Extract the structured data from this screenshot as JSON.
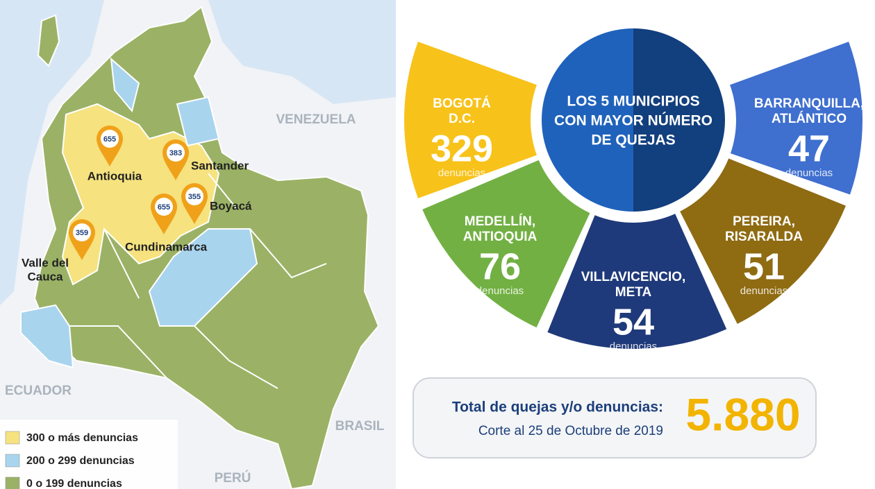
{
  "map": {
    "countries": [
      "VENEZUELA",
      "ECUADOR",
      "BRASIL",
      "PERÚ"
    ],
    "departments": [
      {
        "name": [
          "Antioquia"
        ],
        "count": "655"
      },
      {
        "name": [
          "Santander"
        ],
        "count": "383"
      },
      {
        "name": [
          "Boyacá"
        ],
        "count": "355"
      },
      {
        "name": [
          "Cundinamarca"
        ],
        "count": "655"
      },
      {
        "name": [
          "Valle del",
          "Cauca"
        ],
        "count": "359"
      }
    ],
    "legend": [
      "300 o más denuncias",
      "200 o 299 denuncias",
      "0 o 199 denuncias"
    ]
  },
  "ranking": {
    "title": [
      "LOS 5 MUNICIPIOS",
      "CON MAYOR NÚMERO",
      "DE QUEJAS"
    ],
    "unit": "denuncias",
    "municipalities": [
      {
        "name": [
          "BOGOTÁ",
          "D.C."
        ],
        "count": "329"
      },
      {
        "name": [
          "MEDELLÍN,",
          "ANTIOQUIA"
        ],
        "count": "76"
      },
      {
        "name": [
          "VILLAVICENCIO,",
          "META"
        ],
        "count": "54"
      },
      {
        "name": [
          "PEREIRA,",
          "RISARALDA"
        ],
        "count": "51"
      },
      {
        "name": [
          "BARRANQUILLA,",
          "ATLÁNTICO"
        ],
        "count": "47"
      }
    ]
  },
  "total": {
    "label": "Total de quejas y/o denuncias:",
    "cutoff": "Corte al 25 de Octubre de 2019",
    "value": "5.880"
  }
}
